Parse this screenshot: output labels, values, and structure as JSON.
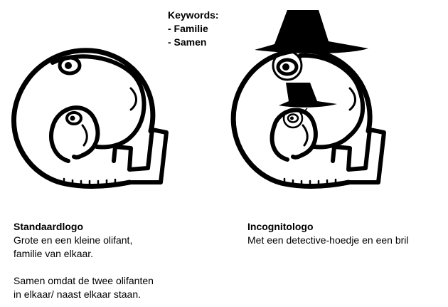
{
  "keywords": {
    "title": "Keywords:",
    "items": [
      "- Familie",
      "- Samen"
    ]
  },
  "standard": {
    "title": "Standaardlogo",
    "paragraph1": "Grote en een kleine olifant,\nfamilie van elkaar.",
    "paragraph2": "Samen omdat de twee olifanten\nin elkaar/ naast elkaar staan."
  },
  "incognito": {
    "title": "Incognitologo",
    "paragraph1": "Met een detective-hoedje en een bril"
  },
  "colors": {
    "ink": "#000000",
    "paper": "#ffffff"
  }
}
